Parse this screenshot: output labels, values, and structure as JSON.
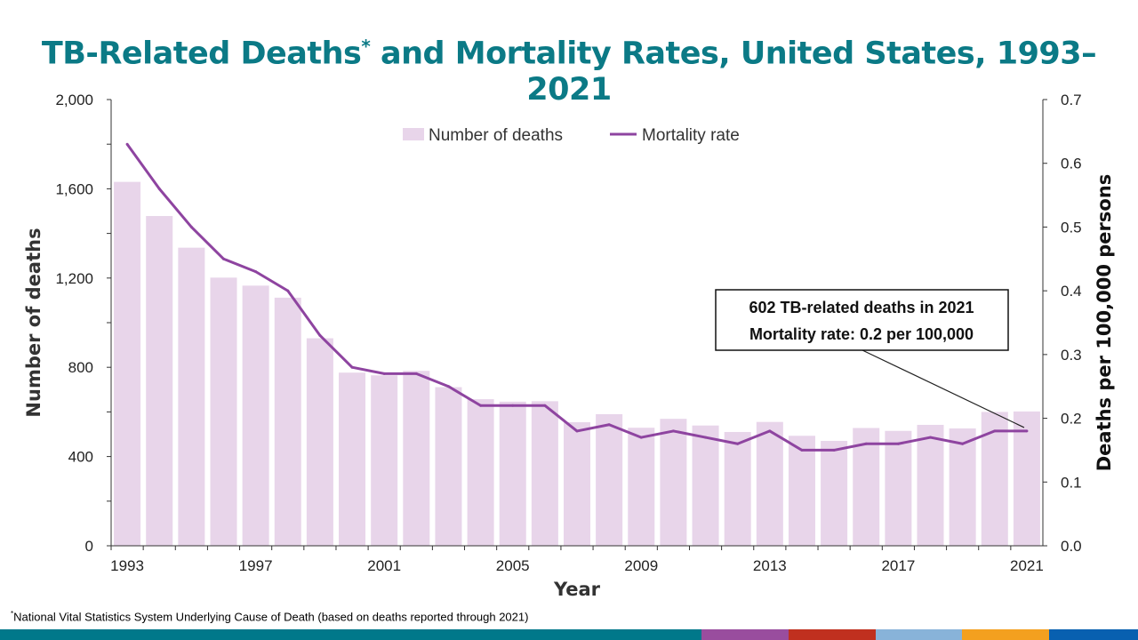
{
  "title": "TB-Related Deaths",
  "title_marker": "*",
  "title_rest": " and Mortality Rates, United States, 1993–2021",
  "footnote_marker": "*",
  "footnote": "National Vital Statistics System Underlying Cause of Death (based on deaths reported through  2021)",
  "annotation": {
    "line1": "602 TB-related deaths in 2021",
    "line2": "Mortality rate: 0.2 per 100,000"
  },
  "footer_colors": [
    "#00788a",
    "#994d9e",
    "#c0301f",
    "#88b3d9",
    "#f3a01f",
    "#0860b0"
  ],
  "chart_data": {
    "type": "bar+line",
    "xlabel": "Year",
    "ylabel": "Number of deaths",
    "y2label": "Deaths per 100,000 persons",
    "ylim": [
      0,
      2000
    ],
    "y2lim": [
      0,
      0.7
    ],
    "yticks": [
      "0",
      "400",
      "800",
      "1,200",
      "1,600",
      "2,000"
    ],
    "y2ticks": [
      "0.0",
      "0.1",
      "0.2",
      "0.3",
      "0.4",
      "0.5",
      "0.6",
      "0.7"
    ],
    "xticks": [
      "1993",
      "1997",
      "2001",
      "2005",
      "2009",
      "2013",
      "2017",
      "2021"
    ],
    "legend_position": "top-center",
    "categories": [
      1993,
      1994,
      1995,
      1996,
      1997,
      1998,
      1999,
      2000,
      2001,
      2002,
      2003,
      2004,
      2005,
      2006,
      2007,
      2008,
      2009,
      2010,
      2011,
      2012,
      2013,
      2014,
      2015,
      2016,
      2017,
      2018,
      2019,
      2020,
      2021
    ],
    "series": [
      {
        "name": "Number of deaths",
        "type": "bar",
        "axis": "left",
        "color": "#e8d5ea",
        "values": [
          1631,
          1478,
          1336,
          1202,
          1166,
          1112,
          930,
          776,
          764,
          784,
          711,
          657,
          646,
          648,
          554,
          590,
          529,
          569,
          539,
          510,
          555,
          493,
          470,
          528,
          515,
          542,
          526,
          600,
          602
        ]
      },
      {
        "name": "Mortality rate",
        "type": "line",
        "axis": "right",
        "color": "#8e44a0",
        "values": [
          0.63,
          0.56,
          0.5,
          0.45,
          0.43,
          0.4,
          0.33,
          0.28,
          0.27,
          0.27,
          0.25,
          0.22,
          0.22,
          0.22,
          0.18,
          0.19,
          0.17,
          0.18,
          0.17,
          0.16,
          0.18,
          0.15,
          0.15,
          0.16,
          0.16,
          0.17,
          0.16,
          0.18,
          0.18
        ]
      }
    ]
  }
}
